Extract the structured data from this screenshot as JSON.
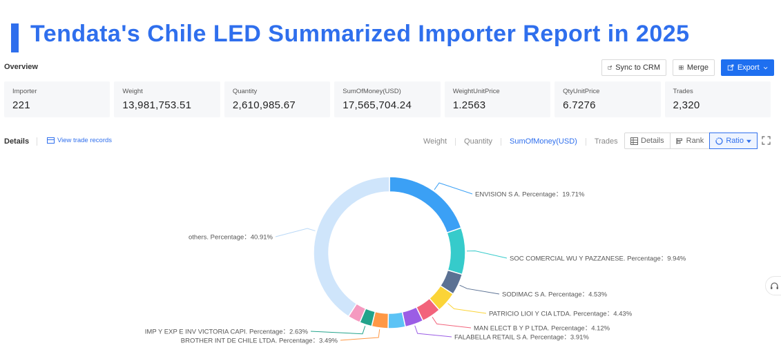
{
  "header": {
    "title": "Tendata's Chile LED Summarized Importer Report in 2025",
    "accent_color": "#2f6fed"
  },
  "overview": {
    "label": "Overview",
    "buttons": {
      "sync": "Sync to CRM",
      "merge": "Merge",
      "export": "Export"
    },
    "stats": [
      {
        "label": "Importer",
        "value": "221"
      },
      {
        "label": "Weight",
        "value": "13,981,753.51"
      },
      {
        "label": "Quantity",
        "value": "2,610,985.67"
      },
      {
        "label": "SumOfMoney(USD)",
        "value": "17,565,704.24"
      },
      {
        "label": "WeightUnitPrice",
        "value": "1.2563"
      },
      {
        "label": "QtyUnitPrice",
        "value": "6.7276"
      },
      {
        "label": "Trades",
        "value": "2,320"
      }
    ]
  },
  "details": {
    "label": "Details",
    "view_trade_records": "View trade records",
    "metric_tabs": [
      "Weight",
      "Quantity",
      "SumOfMoney(USD)",
      "Trades"
    ],
    "active_metric": "SumOfMoney(USD)",
    "view_buttons": {
      "details": "Details",
      "rank": "Rank",
      "ratio": "Ratio"
    },
    "active_view": "Ratio"
  },
  "chart_data": {
    "type": "pie",
    "variant": "donut",
    "slices": [
      {
        "name": "ENVISION S A.",
        "value": 19.71,
        "label": "ENVISION S A.  Percentage：19.71%",
        "color": "#3ba0f5"
      },
      {
        "name": "SOC COMERCIAL WU Y PAZZANESE.",
        "value": 9.94,
        "label": "SOC COMERCIAL WU Y PAZZANESE.  Percentage：9.94%",
        "color": "#36cbcb"
      },
      {
        "name": "SODIMAC S A.",
        "value": 4.53,
        "label": "SODIMAC S A.  Percentage：4.53%",
        "color": "#5b7193"
      },
      {
        "name": "PATRICIO LIOI Y CIA LTDA.",
        "value": 4.43,
        "label": "PATRICIO LIOI Y CIA LTDA.  Percentage：4.43%",
        "color": "#fbd437"
      },
      {
        "name": "MAN ELECT B Y P LTDA.",
        "value": 4.12,
        "label": "MAN ELECT B Y P LTDA.  Percentage：4.12%",
        "color": "#f2637b"
      },
      {
        "name": "FALABELLA RETAIL S A.",
        "value": 3.91,
        "label": "FALABELLA RETAIL S A.  Percentage：3.91%",
        "color": "#9b5de5"
      },
      {
        "name": "",
        "value": 3.65,
        "label": "",
        "color": "#5cc3f5"
      },
      {
        "name": "BROTHER INT DE CHILE LTDA.",
        "value": 3.49,
        "label": "BROTHER INT DE CHILE LTDA.  Percentage：3.49%",
        "color": "#ff9845"
      },
      {
        "name": "IMP Y EXP E INV VICTORIA CAPI.",
        "value": 2.63,
        "label": "IMP Y EXP E INV VICTORIA CAPI.  Percentage：2.63%",
        "color": "#22a38b"
      },
      {
        "name": "",
        "value": 2.68,
        "label": "",
        "color": "#f59ac0"
      },
      {
        "name": "others.",
        "value": 40.91,
        "label": "others.  Percentage：40.91%",
        "color": "#cfe5fb"
      }
    ]
  }
}
